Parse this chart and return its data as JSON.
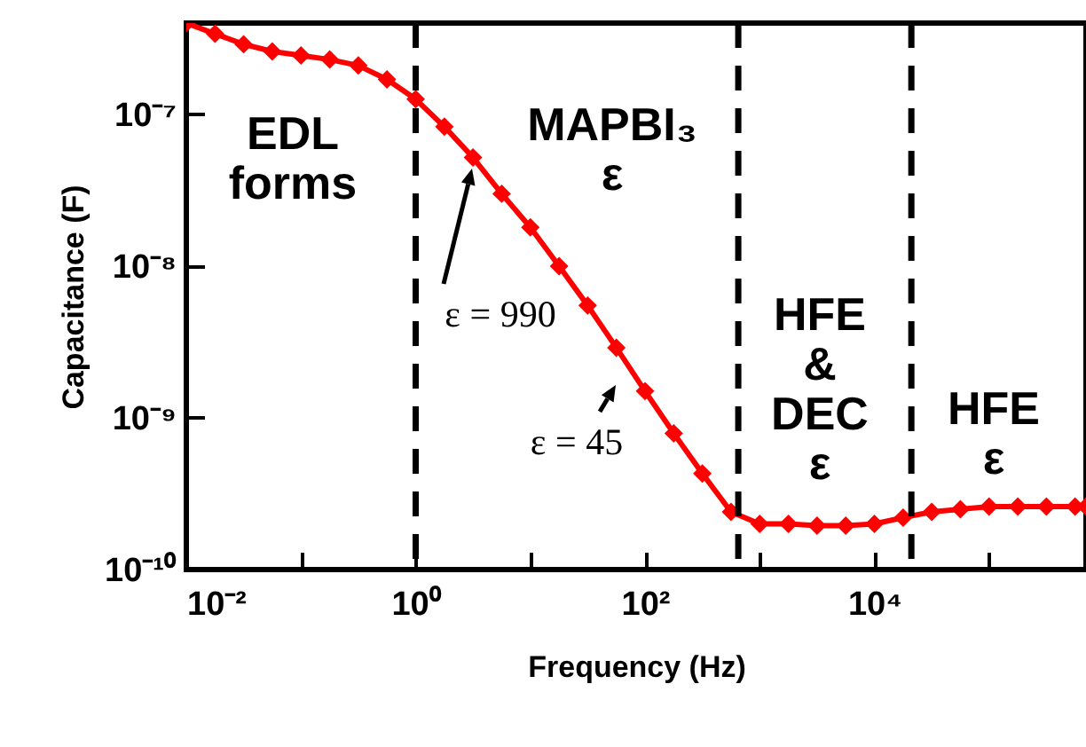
{
  "chart_data": {
    "type": "line",
    "xlabel": "Frequency (Hz)",
    "ylabel": "Capacitance (F)",
    "log": "xy",
    "marker": "diamond",
    "line_style": "solid",
    "xlim": [
      0.01,
      700000
    ],
    "ylim": [
      1e-10,
      4e-07
    ],
    "xticks": [
      {
        "value": 0.01,
        "label": "10⁻²"
      },
      {
        "value": 0.1,
        "label": null
      },
      {
        "value": 1,
        "label": "10⁰"
      },
      {
        "value": 10,
        "label": null
      },
      {
        "value": 100,
        "label": "10²"
      },
      {
        "value": 1000,
        "label": null
      },
      {
        "value": 10000,
        "label": "10⁴"
      },
      {
        "value": 100000,
        "label": null
      }
    ],
    "yticks": [
      {
        "value": 1e-10,
        "label": "10⁻¹⁰"
      },
      {
        "value": 1e-09,
        "label": "10⁻⁹"
      },
      {
        "value": 1e-08,
        "label": "10⁻⁸"
      },
      {
        "value": 1e-07,
        "label": "10⁻⁷"
      }
    ],
    "x": [
      0.01,
      0.0178,
      0.0316,
      0.0562,
      0.1,
      0.178,
      0.316,
      0.562,
      1,
      1.78,
      3.16,
      5.62,
      10,
      17.8,
      31.6,
      56.2,
      100,
      178,
      316,
      562,
      1000,
      1780,
      3160,
      5620,
      10000,
      17800,
      31600,
      56200,
      100000,
      178000,
      316000,
      562000,
      700000
    ],
    "series": [
      {
        "color": "#ff0000",
        "values": [
          4e-07,
          3.4e-07,
          2.9e-07,
          2.6e-07,
          2.45e-07,
          2.3e-07,
          2.1e-07,
          1.7e-07,
          1.26e-07,
          8.3e-08,
          5.2e-08,
          3e-08,
          1.8e-08,
          1e-08,
          5.5e-09,
          2.9e-09,
          1.5e-09,
          7.9e-10,
          4.3e-10,
          2.4e-10,
          2e-10,
          2e-10,
          1.95e-10,
          1.95e-10,
          2e-10,
          2.2e-10,
          2.4e-10,
          2.5e-10,
          2.6e-10,
          2.6e-10,
          2.6e-10,
          2.6e-10,
          2.6e-10
        ]
      }
    ],
    "ref_lines": [
      {
        "axis": "x",
        "value": 1,
        "line_style": "dashed",
        "color": "#000000"
      },
      {
        "axis": "x",
        "value": 650,
        "line_style": "dashed",
        "color": "#000000"
      },
      {
        "axis": "x",
        "value": 21000,
        "line_style": "dashed",
        "color": "#000000"
      }
    ],
    "annotations": [
      "EDL\nforms",
      "MAPBI₃\nε",
      "HFE\n&\nDEC\nε",
      "HFE\nε",
      "ε = 990",
      "ε = 45"
    ]
  }
}
